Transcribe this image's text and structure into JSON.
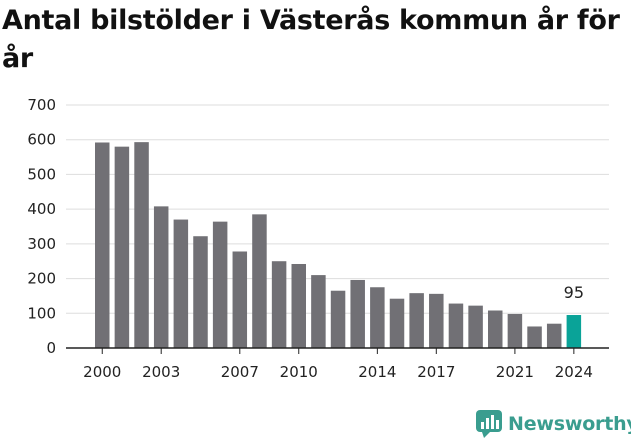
{
  "title": "Antal bilstölder i Västerås kommun år för år",
  "brand": {
    "name": "Newsworthy"
  },
  "colors": {
    "bar": "#717075",
    "highlight": "#0aa398",
    "grid": "#dddddd",
    "axis": "#222222",
    "brand": "#3a9d8f"
  },
  "chart_data": {
    "type": "bar",
    "title": "Antal bilstölder i Västerås kommun år för år",
    "xlabel": "",
    "ylabel": "",
    "categories": [
      "2000",
      "2001",
      "2002",
      "2003",
      "2004",
      "2005",
      "2006",
      "2007",
      "2008",
      "2009",
      "2010",
      "2011",
      "2012",
      "2013",
      "2014",
      "2015",
      "2016",
      "2017",
      "2018",
      "2019",
      "2020",
      "2021",
      "2022",
      "2023",
      "2024"
    ],
    "values": [
      592,
      580,
      593,
      408,
      370,
      322,
      364,
      278,
      385,
      250,
      242,
      210,
      165,
      196,
      175,
      142,
      158,
      156,
      128,
      122,
      108,
      98,
      62,
      70,
      95
    ],
    "highlight_index": 24,
    "data_labels": [
      {
        "category": "2024",
        "text": "95"
      }
    ],
    "x_tick_labels": [
      "2000",
      "2003",
      "2007",
      "2010",
      "2014",
      "2017",
      "2021",
      "2024"
    ],
    "y_ticks": [
      0,
      100,
      200,
      300,
      400,
      500,
      600,
      700
    ],
    "ylim": [
      0,
      700
    ],
    "grid": true,
    "legend": "none"
  }
}
